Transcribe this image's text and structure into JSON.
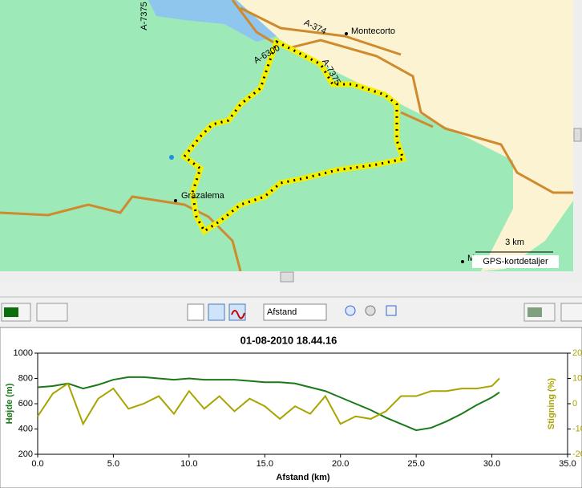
{
  "map": {
    "labels": [
      "A-7375",
      "A-374",
      "Montecorto",
      "A-6300",
      "A-7375",
      "Grazalema",
      "M"
    ],
    "scale": "3 km",
    "details": "GPS-kortdetaljer"
  },
  "toolbar": {
    "axis_select": "Afstand"
  },
  "chart_data": {
    "type": "line",
    "title": "01-08-2010 18.44.16",
    "x_label": "Afstand (km)",
    "y_label": "Højde (m)",
    "y2_label": "Stigning (%)",
    "x": [
      0,
      1,
      2,
      3,
      4,
      5,
      6,
      7,
      8,
      9,
      10,
      11,
      12,
      13,
      14,
      15,
      16,
      17,
      18,
      19,
      20,
      21,
      22,
      23,
      24,
      25,
      26,
      27,
      28,
      29,
      30,
      30.5
    ],
    "series": [
      {
        "color": "#1a7a1a",
        "values": [
          730,
          740,
          760,
          720,
          750,
          790,
          810,
          810,
          800,
          790,
          800,
          790,
          790,
          790,
          780,
          770,
          770,
          760,
          730,
          700,
          650,
          600,
          550,
          490,
          440,
          390,
          410,
          460,
          520,
          590,
          650,
          690
        ]
      },
      {
        "color": "#a8a400",
        "axis": "y2",
        "values": [
          -5,
          4,
          8,
          -8,
          2,
          6,
          -2,
          0,
          3,
          -4,
          5,
          -2,
          3,
          -3,
          2,
          -1,
          -6,
          -1,
          -4,
          3,
          -8,
          -5,
          -6,
          -3,
          3,
          3,
          5,
          5,
          6,
          6,
          7,
          10
        ]
      }
    ],
    "xlim": [
      0,
      35
    ],
    "ylim": [
      200,
      1000
    ],
    "y2lim": [
      -20,
      20
    ],
    "xticks": [
      {
        "value": 0,
        "label": "0.0"
      },
      {
        "value": 5,
        "label": "5.0"
      },
      {
        "value": 10,
        "label": "10.0"
      },
      {
        "value": 15,
        "label": "15.0"
      },
      {
        "value": 20,
        "label": "20.0"
      },
      {
        "value": 25,
        "label": "25.0"
      },
      {
        "value": 30,
        "label": "30.0"
      },
      {
        "value": 35,
        "label": "35.0"
      }
    ],
    "yticks": [
      200,
      400,
      600,
      800,
      1000
    ],
    "y2ticks": [
      -20,
      -10,
      0,
      10,
      20
    ]
  }
}
